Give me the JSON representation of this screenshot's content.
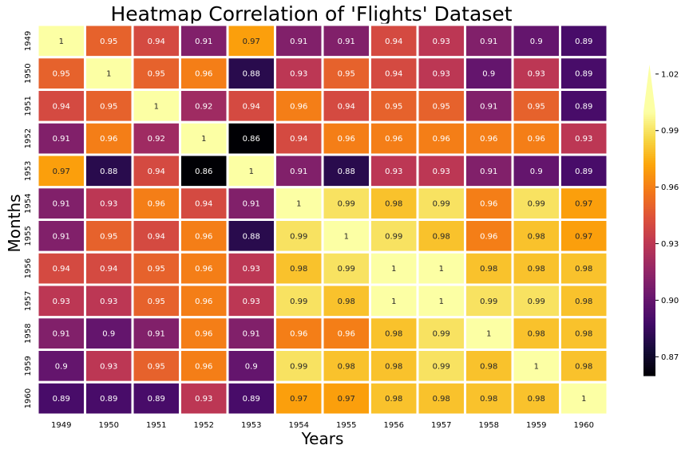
{
  "chart_data": {
    "type": "heatmap",
    "title": "Heatmap Correlation of 'Flights' Dataset",
    "xlabel": "Years",
    "ylabel": "Months",
    "x_categories": [
      "1949",
      "1950",
      "1951",
      "1952",
      "1953",
      "1954",
      "1955",
      "1956",
      "1957",
      "1958",
      "1959",
      "1960"
    ],
    "y_categories": [
      "1949",
      "1950",
      "1951",
      "1952",
      "1953",
      "1954",
      "1955",
      "1956",
      "1957",
      "1958",
      "1959",
      "1960"
    ],
    "values": [
      [
        1,
        0.95,
        0.94,
        0.91,
        0.97,
        0.91,
        0.91,
        0.94,
        0.93,
        0.91,
        0.9,
        0.89
      ],
      [
        0.95,
        1,
        0.95,
        0.96,
        0.88,
        0.93,
        0.95,
        0.94,
        0.93,
        0.9,
        0.93,
        0.89
      ],
      [
        0.94,
        0.95,
        1,
        0.92,
        0.94,
        0.96,
        0.94,
        0.95,
        0.95,
        0.91,
        0.95,
        0.89
      ],
      [
        0.91,
        0.96,
        0.92,
        1,
        0.86,
        0.94,
        0.96,
        0.96,
        0.96,
        0.96,
        0.96,
        0.93
      ],
      [
        0.97,
        0.88,
        0.94,
        0.86,
        1,
        0.91,
        0.88,
        0.93,
        0.93,
        0.91,
        0.9,
        0.89
      ],
      [
        0.91,
        0.93,
        0.96,
        0.94,
        0.91,
        1,
        0.99,
        0.98,
        0.99,
        0.96,
        0.99,
        0.97
      ],
      [
        0.91,
        0.95,
        0.94,
        0.96,
        0.88,
        0.99,
        1,
        0.99,
        0.98,
        0.96,
        0.98,
        0.97
      ],
      [
        0.94,
        0.94,
        0.95,
        0.96,
        0.93,
        0.98,
        0.99,
        1,
        1,
        0.98,
        0.98,
        0.98
      ],
      [
        0.93,
        0.93,
        0.95,
        0.96,
        0.93,
        0.99,
        0.98,
        1,
        1,
        0.99,
        0.99,
        0.98
      ],
      [
        0.91,
        0.9,
        0.91,
        0.96,
        0.91,
        0.96,
        0.96,
        0.98,
        0.99,
        1,
        0.98,
        0.98
      ],
      [
        0.9,
        0.93,
        0.95,
        0.96,
        0.9,
        0.99,
        0.98,
        0.98,
        0.99,
        0.98,
        1,
        0.98
      ],
      [
        0.89,
        0.89,
        0.89,
        0.93,
        0.89,
        0.97,
        0.97,
        0.98,
        0.98,
        0.98,
        0.98,
        1
      ]
    ],
    "colorscale": "inferno",
    "color_range": [
      0.86,
      1.0
    ],
    "colorbar_ticks": [
      "0.87",
      "0.90",
      "0.93",
      "0.96",
      "0.99",
      "1.02"
    ],
    "colorbar_tick_values": [
      0.87,
      0.9,
      0.93,
      0.96,
      0.99,
      1.02
    ],
    "colorbar_range": [
      0.86,
      1.025
    ],
    "cell_border_color": "#ffffff"
  }
}
